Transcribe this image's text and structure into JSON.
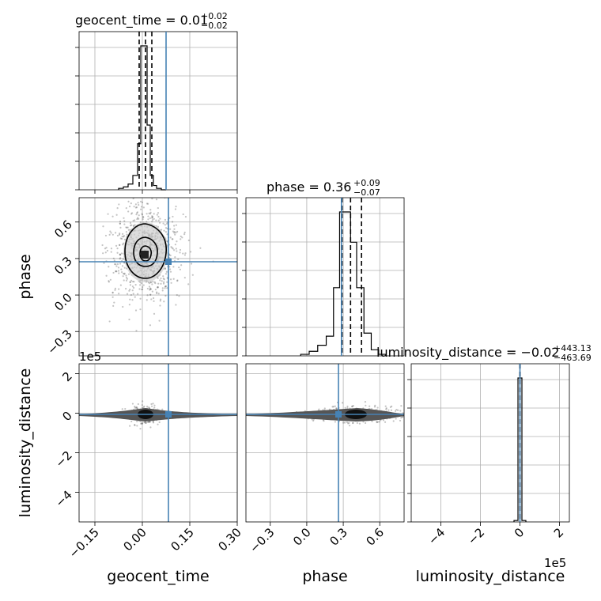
{
  "chart_data": {
    "type": "corner",
    "parameters": [
      {
        "key": "geocent_time",
        "label": "geocent_time",
        "axis_range": [
          -0.2,
          0.3
        ],
        "ticks": [
          -0.15,
          0.0,
          0.15,
          0.3
        ],
        "tick_labels": [
          "−0.15",
          "0.00",
          "0.15",
          "0.30"
        ],
        "truth": 0.075
      },
      {
        "key": "phase",
        "label": "phase",
        "axis_range": [
          -0.5,
          0.8
        ],
        "ticks": [
          -0.3,
          0.0,
          0.3,
          0.6
        ],
        "tick_labels": [
          "−0.3",
          "0.0",
          "0.3",
          "0.6"
        ],
        "truth": 0.285
      },
      {
        "key": "luminosity_distance",
        "label": "luminosity_distance",
        "axis_range": [
          -5.5,
          2.5
        ],
        "ticks": [
          -4,
          -2,
          0,
          2
        ],
        "tick_labels": [
          "−4",
          "−2",
          "0",
          "2"
        ],
        "offset_text": "1e5",
        "truth": 0.0
      }
    ],
    "titles": [
      {
        "prefix": "geocent_time = ",
        "value": "0.01",
        "upper": "+0.02",
        "lower": "−0.02"
      },
      {
        "prefix": "phase = ",
        "value": "0.36",
        "upper": "+0.09",
        "lower": "−0.07"
      },
      {
        "prefix": "luminosity_distance = ",
        "value": "−0.02",
        "upper": "+443.13",
        "lower": "−463.69"
      }
    ],
    "histograms": {
      "geocent_time": {
        "bin_edges": [
          -0.075,
          -0.06,
          -0.045,
          -0.03,
          -0.015,
          -0.005,
          0.005,
          0.015,
          0.025,
          0.035,
          0.045,
          0.06,
          0.075
        ],
        "counts": [
          0.01,
          0.02,
          0.04,
          0.1,
          0.32,
          1.0,
          1.0,
          0.45,
          0.1,
          0.03,
          0.01,
          0.0
        ]
      },
      "phase": {
        "bin_edges": [
          -0.05,
          0.02,
          0.09,
          0.16,
          0.22,
          0.27,
          0.31,
          0.36,
          0.41,
          0.47,
          0.53,
          0.59,
          0.65
        ],
        "counts": [
          0.01,
          0.03,
          0.07,
          0.13,
          0.45,
          0.95,
          0.95,
          0.75,
          0.45,
          0.15,
          0.04,
          0.01
        ]
      },
      "luminosity_distance": {
        "bin_edges": [
          -0.3,
          -0.1,
          0.1,
          0.3
        ],
        "counts": [
          0.01,
          1.0,
          0.01
        ]
      }
    },
    "quantiles": {
      "geocent_time": [
        -0.01,
        0.01,
        0.03
      ],
      "phase": [
        0.29,
        0.36,
        0.45
      ],
      "luminosity_distance": [
        -0.005,
        0.0,
        0.004
      ]
    },
    "grid": true
  }
}
